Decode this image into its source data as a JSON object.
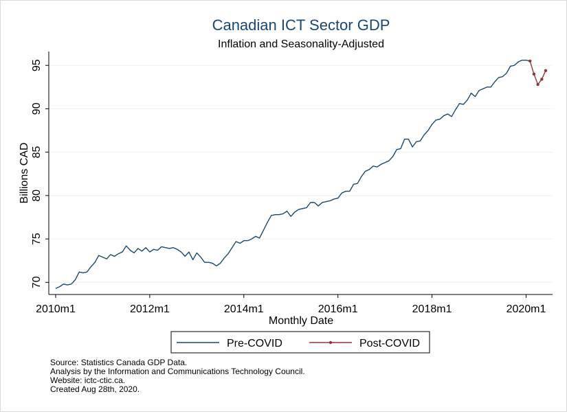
{
  "chart_data": {
    "type": "line",
    "title": "Canadian ICT Sector GDP",
    "subtitle": "Inflation and Seasonality-Adjusted",
    "xlabel": "Monthly Date",
    "ylabel": "Billions CAD",
    "xlim": [
      "2010m1",
      "2020m6"
    ],
    "ylim": [
      68.6,
      96.6
    ],
    "x_ticks": [
      "2010m1",
      "2012m1",
      "2014m1",
      "2016m1",
      "2018m1",
      "2020m1"
    ],
    "y_ticks": [
      70,
      75,
      80,
      85,
      90,
      95
    ],
    "grid": "horizontal",
    "legend_position": "bottom",
    "series": [
      {
        "name": "Pre-COVID",
        "color": "#1a476f",
        "marker": "none",
        "points": [
          [
            "2010m1",
            69.3
          ],
          [
            "2010m2",
            69.5
          ],
          [
            "2010m3",
            69.8
          ],
          [
            "2010m4",
            69.7
          ],
          [
            "2010m5",
            69.8
          ],
          [
            "2010m6",
            70.3
          ],
          [
            "2010m7",
            71.2
          ],
          [
            "2010m8",
            71.1
          ],
          [
            "2010m9",
            71.2
          ],
          [
            "2010m10",
            71.8
          ],
          [
            "2010m11",
            72.3
          ],
          [
            "2010m12",
            73.1
          ],
          [
            "2011m1",
            72.9
          ],
          [
            "2011m2",
            72.7
          ],
          [
            "2011m3",
            73.2
          ],
          [
            "2011m4",
            73.0
          ],
          [
            "2011m5",
            73.3
          ],
          [
            "2011m6",
            73.5
          ],
          [
            "2011m7",
            74.2
          ],
          [
            "2011m8",
            73.7
          ],
          [
            "2011m9",
            73.4
          ],
          [
            "2011m10",
            73.9
          ],
          [
            "2011m11",
            73.6
          ],
          [
            "2011m12",
            74.0
          ],
          [
            "2012m1",
            73.5
          ],
          [
            "2012m2",
            73.8
          ],
          [
            "2012m3",
            73.7
          ],
          [
            "2012m4",
            74.1
          ],
          [
            "2012m5",
            74.0
          ],
          [
            "2012m6",
            73.9
          ],
          [
            "2012m7",
            74.0
          ],
          [
            "2012m8",
            73.8
          ],
          [
            "2012m9",
            73.5
          ],
          [
            "2012m10",
            73.0
          ],
          [
            "2012m11",
            73.5
          ],
          [
            "2012m12",
            72.6
          ],
          [
            "2013m1",
            73.4
          ],
          [
            "2013m2",
            72.9
          ],
          [
            "2013m3",
            72.3
          ],
          [
            "2013m4",
            72.3
          ],
          [
            "2013m5",
            72.2
          ],
          [
            "2013m6",
            71.9
          ],
          [
            "2013m7",
            72.2
          ],
          [
            "2013m8",
            72.8
          ],
          [
            "2013m9",
            73.3
          ],
          [
            "2013m10",
            74.0
          ],
          [
            "2013m11",
            74.7
          ],
          [
            "2013m12",
            74.5
          ],
          [
            "2014m1",
            74.8
          ],
          [
            "2014m2",
            74.8
          ],
          [
            "2014m3",
            75.0
          ],
          [
            "2014m4",
            75.3
          ],
          [
            "2014m5",
            75.1
          ],
          [
            "2014m6",
            76.0
          ],
          [
            "2014m7",
            76.9
          ],
          [
            "2014m8",
            77.7
          ],
          [
            "2014m9",
            77.8
          ],
          [
            "2014m10",
            77.8
          ],
          [
            "2014m11",
            77.9
          ],
          [
            "2014m12",
            78.2
          ],
          [
            "2015m1",
            77.6
          ],
          [
            "2015m2",
            78.1
          ],
          [
            "2015m3",
            78.4
          ],
          [
            "2015m4",
            78.5
          ],
          [
            "2015m5",
            78.6
          ],
          [
            "2015m6",
            79.2
          ],
          [
            "2015m7",
            79.2
          ],
          [
            "2015m8",
            78.8
          ],
          [
            "2015m9",
            79.2
          ],
          [
            "2015m10",
            79.3
          ],
          [
            "2015m11",
            79.4
          ],
          [
            "2015m12",
            79.6
          ],
          [
            "2016m1",
            79.7
          ],
          [
            "2016m2",
            80.3
          ],
          [
            "2016m3",
            80.5
          ],
          [
            "2016m4",
            80.5
          ],
          [
            "2016m5",
            81.3
          ],
          [
            "2016m6",
            81.4
          ],
          [
            "2016m7",
            82.2
          ],
          [
            "2016m8",
            82.8
          ],
          [
            "2016m9",
            83.0
          ],
          [
            "2016m10",
            83.4
          ],
          [
            "2016m11",
            83.3
          ],
          [
            "2016m12",
            83.6
          ],
          [
            "2017m1",
            83.8
          ],
          [
            "2017m2",
            84.0
          ],
          [
            "2017m3",
            84.5
          ],
          [
            "2017m4",
            85.3
          ],
          [
            "2017m5",
            85.4
          ],
          [
            "2017m6",
            86.5
          ],
          [
            "2017m7",
            86.5
          ],
          [
            "2017m8",
            85.6
          ],
          [
            "2017m9",
            86.2
          ],
          [
            "2017m10",
            86.3
          ],
          [
            "2017m11",
            87.0
          ],
          [
            "2017m12",
            87.5
          ],
          [
            "2018m1",
            88.2
          ],
          [
            "2018m2",
            88.7
          ],
          [
            "2018m3",
            88.8
          ],
          [
            "2018m4",
            89.2
          ],
          [
            "2018m5",
            89.4
          ],
          [
            "2018m6",
            89.1
          ],
          [
            "2018m7",
            89.9
          ],
          [
            "2018m8",
            90.6
          ],
          [
            "2018m9",
            90.5
          ],
          [
            "2018m10",
            91.0
          ],
          [
            "2018m11",
            91.8
          ],
          [
            "2018m12",
            91.4
          ],
          [
            "2019m1",
            92.1
          ],
          [
            "2019m2",
            92.3
          ],
          [
            "2019m3",
            92.5
          ],
          [
            "2019m4",
            92.5
          ],
          [
            "2019m5",
            93.1
          ],
          [
            "2019m6",
            93.6
          ],
          [
            "2019m7",
            93.7
          ],
          [
            "2019m8",
            94.1
          ],
          [
            "2019m9",
            94.9
          ],
          [
            "2019m10",
            95.0
          ],
          [
            "2019m11",
            95.4
          ],
          [
            "2019m12",
            95.6
          ],
          [
            "2020m1",
            95.6
          ],
          [
            "2020m2",
            95.5
          ]
        ]
      },
      {
        "name": "Post-COVID",
        "color": "#90353b",
        "marker": "dot",
        "points": [
          [
            "2020m2",
            95.5
          ],
          [
            "2020m3",
            94.0
          ],
          [
            "2020m4",
            92.8
          ],
          [
            "2020m5",
            93.4
          ],
          [
            "2020m6",
            94.4
          ]
        ]
      }
    ]
  },
  "notes": [
    "Source: Statistics Canada GDP Data.",
    "Analysis by the Information and Communications Technology Council.",
    "Website: ictc-ctic.ca.",
    "Created Aug 28th, 2020."
  ]
}
